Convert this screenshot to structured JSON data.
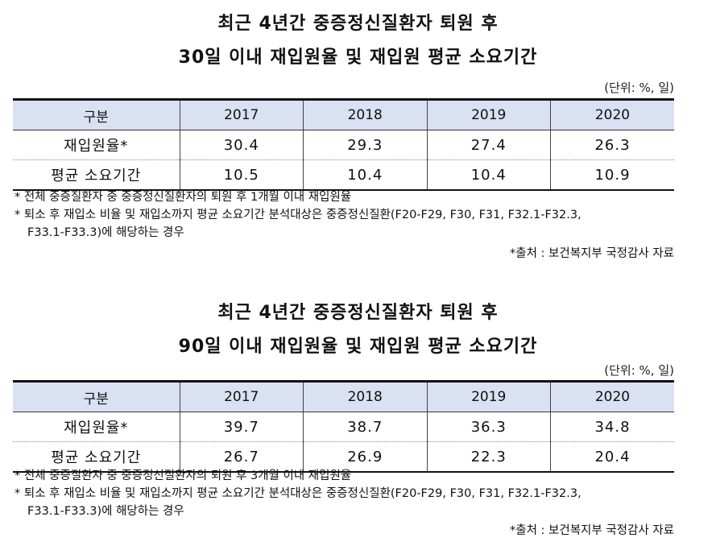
{
  "sections": [
    {
      "title_line1": "최근 4년간 중증정신질환자 퇴원 후",
      "title_line2": "30일 이내 재입원율 및 재입원 평균 소요기간",
      "unit": "(단위: %, 일)",
      "table": {
        "header": [
          "구분",
          "2017",
          "2018",
          "2019",
          "2020"
        ],
        "rows": [
          [
            "재입원율*",
            "30.4",
            "29.3",
            "27.4",
            "26.3"
          ],
          [
            "평균 소요기간",
            "10.5",
            "10.4",
            "10.4",
            "10.9"
          ]
        ]
      },
      "note1": "* 전체 중증질환자 중 중증정신질환자의 퇴원 후 1개월 이내 재입원율",
      "note2a": "* 퇴소 후 재입소 비율 및 재입소까지 평균 소요기간 분석대상은 중증정신질환(F20-F29, F30, F31, F32.1-F32.3,",
      "note2b": "F33.1-F33.3)에 해당하는 경우",
      "source": "*출처 : 보건복지부 국정감사 자료"
    },
    {
      "title_line1": "최근 4년간 중증정신질환자 퇴원 후",
      "title_line2": "90일 이내 재입원율 및 재입원 평균 소요기간",
      "unit": "(단위: %, 일)",
      "table": {
        "header": [
          "구분",
          "2017",
          "2018",
          "2019",
          "2020"
        ],
        "rows": [
          [
            "재입원율*",
            "39.7",
            "38.7",
            "36.3",
            "34.8"
          ],
          [
            "평균 소요기간",
            "26.7",
            "26.9",
            "22.3",
            "20.4"
          ]
        ]
      },
      "note1": "* 전체 중증질환자 중 중증정신질환자의 퇴원 후 3개월 이내 재입원율",
      "note2a": "* 퇴소 후 재입소 비율 및 재입소까지 평균 소요기간 분석대상은 중증정신질환(F20-F29, F30, F31, F32.1-F32.3,",
      "note2b": "F33.1-F33.3)에 해당하는 경우",
      "source": "*출처 : 보건복지부 국정감사 자료"
    }
  ]
}
